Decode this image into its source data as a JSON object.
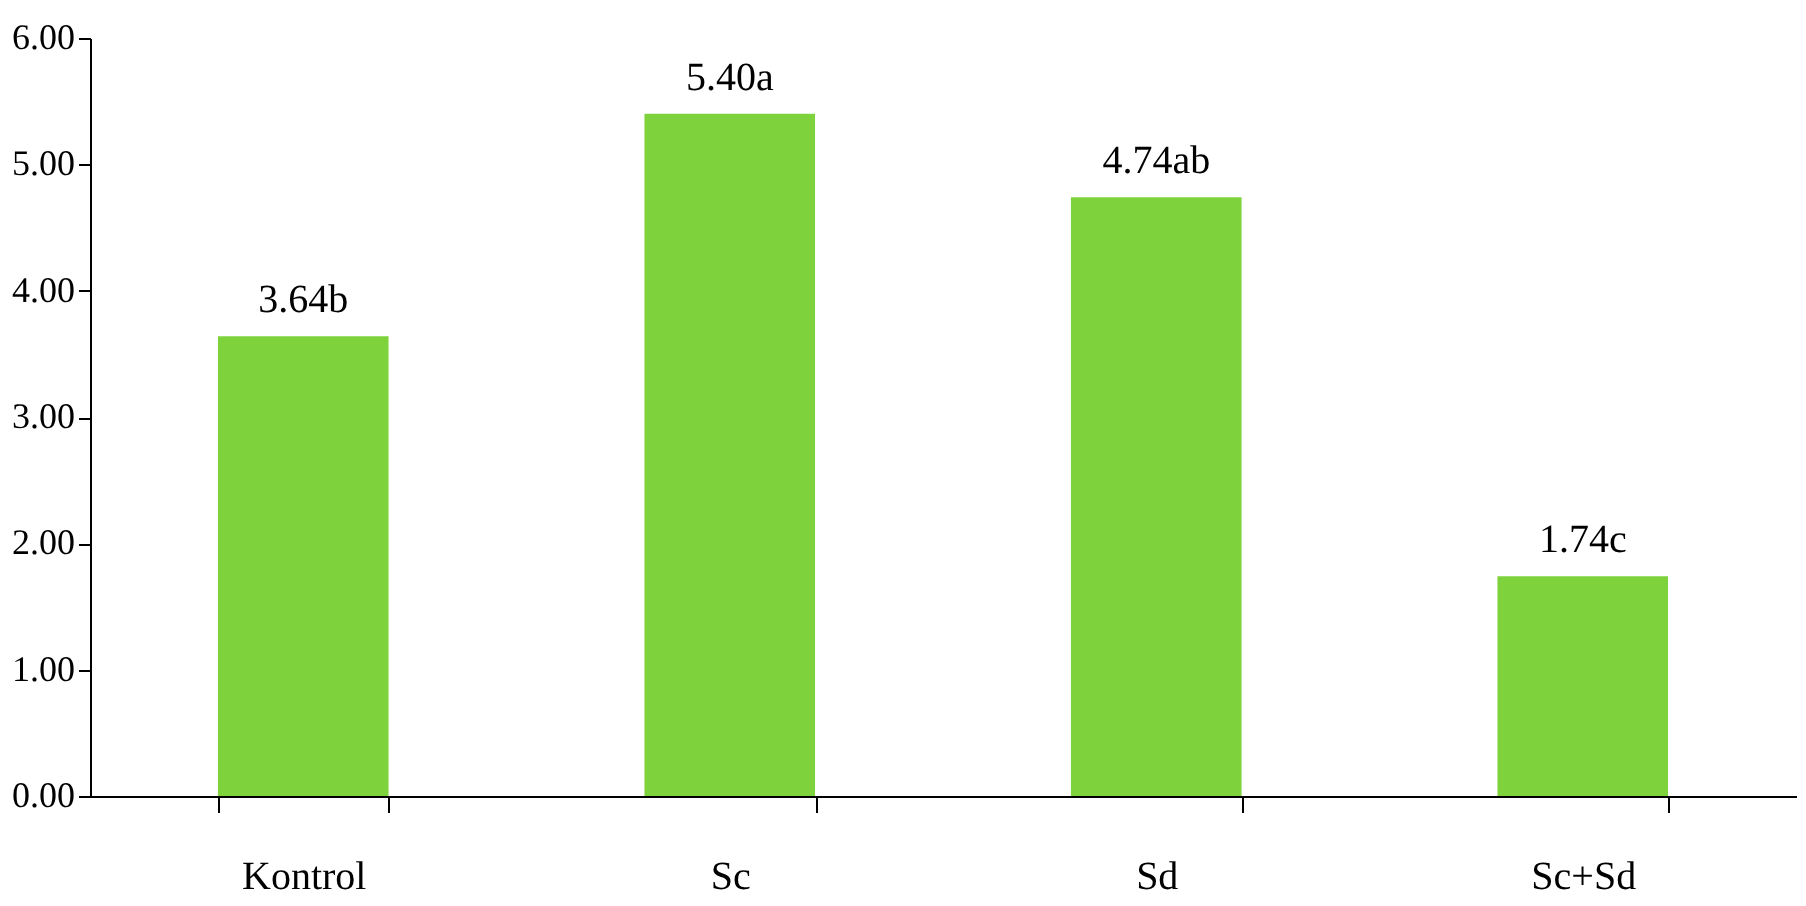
{
  "chart_data": {
    "type": "bar",
    "categories": [
      "Kontrol",
      "Sc",
      "Sd",
      "Sc+Sd"
    ],
    "values": [
      3.64,
      5.4,
      4.74,
      1.74
    ],
    "value_labels": [
      "3.64b",
      "5.40a",
      "4.74ab",
      "1.74c"
    ],
    "color": "#7ed33c",
    "ylim": [
      0,
      6
    ],
    "yticks": [
      {
        "value": 0,
        "label": "0.00"
      },
      {
        "value": 1,
        "label": "1.00"
      },
      {
        "value": 2,
        "label": "2.00"
      },
      {
        "value": 3,
        "label": "3.00"
      },
      {
        "value": 4,
        "label": "4.00"
      },
      {
        "value": 5,
        "label": "5.00"
      },
      {
        "value": 6,
        "label": "6.00"
      }
    ],
    "grid": false
  }
}
